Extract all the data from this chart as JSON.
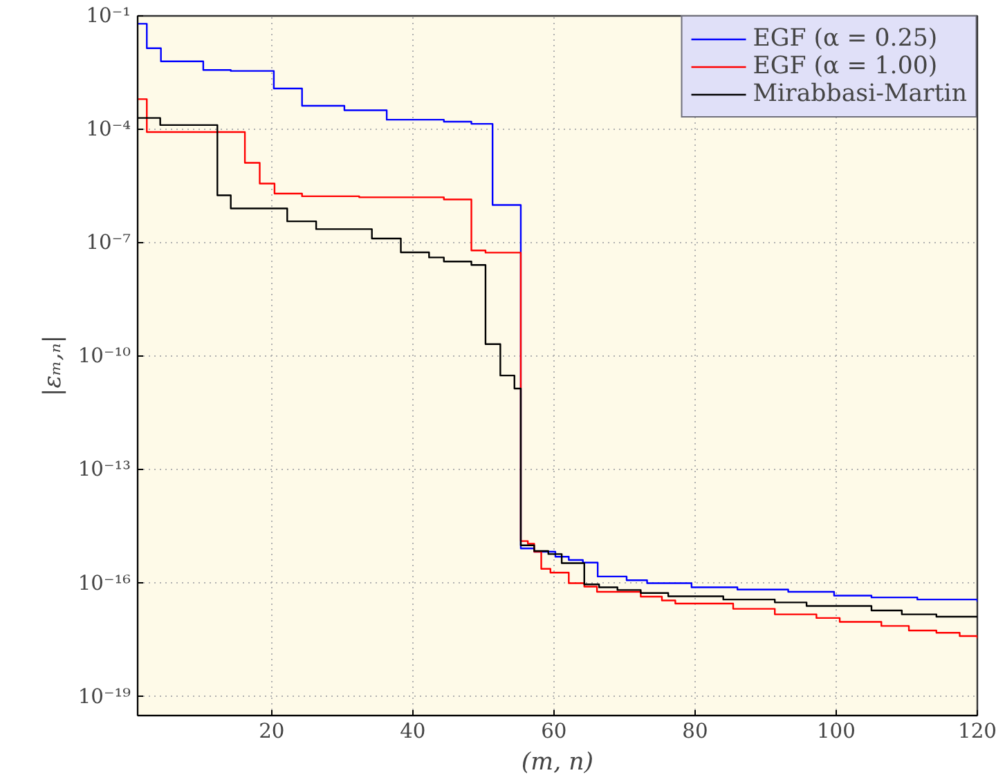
{
  "chart_data": {
    "type": "step",
    "xlabel": "(m, n)",
    "ylabel": "|εₘ,ₙ|",
    "log": "y",
    "grid": true,
    "legend": "top right",
    "xlim": [
      1,
      120
    ],
    "xticks": [
      20,
      40,
      60,
      80,
      100,
      120
    ],
    "ylim": [
      3.16e-20,
      0.1
    ],
    "yticks": [
      {
        "value": 0.1,
        "label": "10⁻¹"
      },
      {
        "value": 0.0001,
        "label": "10⁻⁴"
      },
      {
        "value": 1e-07,
        "label": "10⁻⁷"
      },
      {
        "value": 1e-10,
        "label": "10⁻¹⁰"
      },
      {
        "value": 1e-13,
        "label": "10⁻¹³"
      },
      {
        "value": 1e-16,
        "label": "10⁻¹⁶"
      },
      {
        "value": 1e-19,
        "label": "10⁻¹⁹"
      }
    ],
    "series": [
      {
        "name": "EGF (α = 0.25)",
        "color": "#0000ff",
        "x": [
          1,
          2.3,
          4.3,
          10.3,
          14.2,
          20.3,
          24.3,
          30.3,
          36.3,
          44.4,
          48.3,
          51.3,
          55.3,
          57.2,
          60.2,
          62.1,
          64.1,
          66.2,
          70.3,
          73.2,
          79.5,
          86,
          93.2,
          99.7,
          105,
          111.5,
          120
        ],
        "values": [
          0.062,
          0.014,
          0.0063,
          0.0037,
          0.0035,
          0.0012,
          0.00042,
          0.00032,
          0.00018,
          0.00016,
          0.00014,
          1e-06,
          8.3e-16,
          6.8e-16,
          5e-16,
          4.1e-16,
          3.5e-16,
          1.5e-16,
          1.2e-16,
          1e-16,
          7.8e-17,
          6.8e-17,
          5.9e-17,
          4.7e-17,
          4.2e-17,
          3.7e-17,
          3.2e-17
        ]
      },
      {
        "name": "EGF (α = 1.00)",
        "color": "#ff0000",
        "x": [
          1,
          2.3,
          16.2,
          18.3,
          20.4,
          24.3,
          32.4,
          44.4,
          48.3,
          50.3,
          55.3,
          56.3,
          57.2,
          58.2,
          59.5,
          62.1,
          64.3,
          66.1,
          72.3,
          75.3,
          77.2,
          85.4,
          91.3,
          97.2,
          100.5,
          106.4,
          110.3,
          114.2,
          117.5,
          120
        ],
        "values": [
          0.00063,
          8.5e-05,
          1.3e-05,
          3.7e-06,
          2e-06,
          1.7e-06,
          1.6e-06,
          1.4e-06,
          6.3e-08,
          5.5e-08,
          1.3e-15,
          1.1e-15,
          6.8e-16,
          2.4e-16,
          1.9e-16,
          1e-16,
          8.1e-17,
          5.9e-17,
          4.4e-17,
          3.5e-17,
          2.9e-17,
          2.1e-17,
          1.5e-17,
          1.2e-17,
          9.5e-18,
          7.4e-18,
          5.6e-18,
          4.9e-18,
          4e-18,
          3.5e-18
        ]
      },
      {
        "name": "Mirabbasi-Martin",
        "color": "#000000",
        "x": [
          1,
          4.2,
          12.3,
          14.2,
          22.2,
          26.3,
          34.2,
          38.3,
          42.3,
          44.4,
          48.3,
          50.3,
          52.4,
          54.4,
          55.3,
          57.2,
          59.2,
          61.1,
          64.3,
          66.4,
          69,
          72.3,
          76.2,
          84,
          91.3,
          95.8,
          105,
          109.3,
          114.2,
          120
        ],
        "values": [
          0.0002,
          0.00013,
          1.8e-06,
          8.1e-07,
          3.7e-07,
          2.3e-07,
          1.3e-07,
          5.6e-08,
          4.1e-08,
          3.2e-08,
          2.6e-08,
          2.1e-10,
          3.1e-11,
          1.4e-11,
          1e-15,
          7.1e-16,
          5.9e-16,
          3.4e-16,
          9.3e-17,
          7.8e-17,
          6.6e-17,
          5.5e-17,
          4.5e-17,
          3.7e-17,
          3.1e-17,
          2.5e-17,
          1.9e-17,
          1.5e-17,
          1.3e-17,
          1.3e-17
        ]
      }
    ]
  }
}
